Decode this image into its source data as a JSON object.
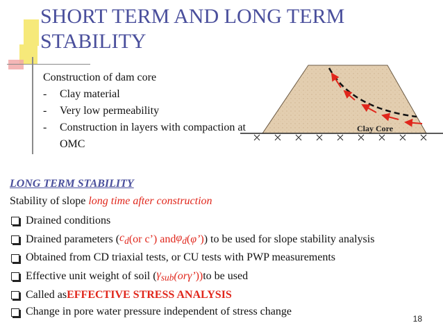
{
  "title": "SHORT TERM AND LONG TERM STABILITY",
  "intro": {
    "heading": "Construction of dam core",
    "items": [
      "Clay material",
      "Very low permeability",
      "Construction in layers with compaction at OMC"
    ],
    "dash": "-"
  },
  "diagram": {
    "label": "Clay Core"
  },
  "long_term": {
    "heading": "LONG TERM STABILITY",
    "subtitle_prefix": "Stability of slope ",
    "subtitle_emph": "long time after construction",
    "items": {
      "drained": "Drained conditions",
      "params_a": "Drained parameters (",
      "params_c": "c",
      "params_d": "d",
      "params_b": " (or c’) and ",
      "params_phi": "φ",
      "params_e": " (",
      "params_phi2": "φ’",
      "params_f": ")",
      "params_g": ") to be used for slope stability analysis",
      "obtained": "Obtained from CD triaxial tests, or CU tests with PWP measurements",
      "eff_a": "Effective unit weight of soil (",
      "eff_gamma": "γ",
      "eff_sub": "sub",
      "eff_b": " (or ",
      "eff_gamma2": "γ’",
      "eff_c": "))",
      "eff_d": " to be used",
      "called_a": "Called as ",
      "called_b": "EFFECTIVE STRESS ANALYSIS",
      "change": "Change in pore water pressure independent of stress change"
    }
  },
  "page_number": "18",
  "colors": {
    "title": "#4a4f9c",
    "emphasis": "#e0261b",
    "clay": "#e3ceb0",
    "deco_yellow": "#f6e97a",
    "deco_pink": "#f2a9a9"
  }
}
